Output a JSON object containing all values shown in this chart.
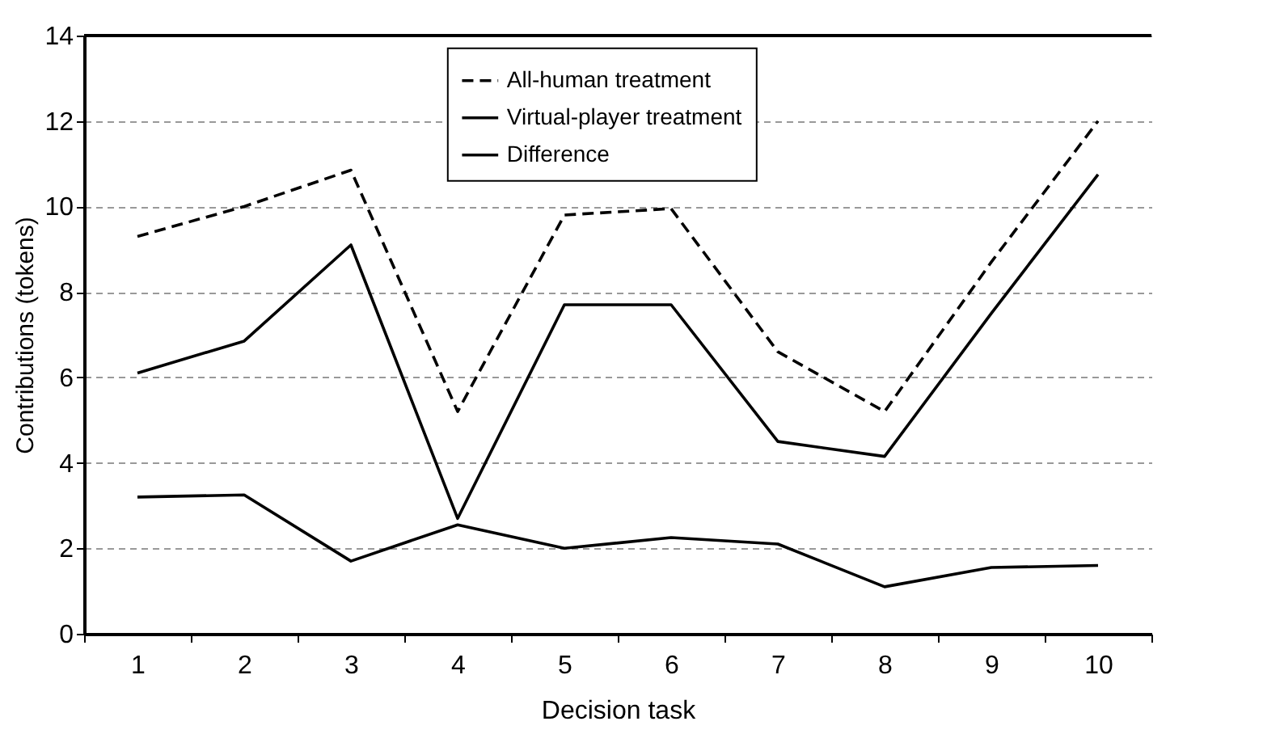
{
  "chart_data": {
    "type": "line",
    "xlabel": "Decision task",
    "ylabel": "Contributions (tokens)",
    "categories": [
      "1",
      "2",
      "3",
      "4",
      "5",
      "6",
      "7",
      "8",
      "9",
      "10"
    ],
    "series": [
      {
        "name": "All-human treatment",
        "color": "#000000",
        "line_style": "dashed",
        "values": [
          9.3,
          10.0,
          10.85,
          5.2,
          9.8,
          9.95,
          6.6,
          5.2,
          8.7,
          12.0
        ]
      },
      {
        "name": "Virtual-player treatment",
        "color": "#000000",
        "line_style": "solid",
        "values": [
          6.1,
          6.85,
          9.1,
          2.7,
          7.7,
          7.7,
          4.5,
          4.15,
          7.5,
          10.75
        ]
      },
      {
        "name": "Difference",
        "color": "#000000",
        "line_style": "solid",
        "values": [
          3.2,
          3.25,
          1.7,
          2.55,
          2.0,
          2.25,
          2.1,
          1.1,
          1.55,
          1.6
        ]
      }
    ],
    "ylim": [
      0,
      14
    ],
    "yticks": [
      0,
      2,
      4,
      6,
      8,
      10,
      12,
      14
    ],
    "grid": "y",
    "legend": "top right"
  }
}
